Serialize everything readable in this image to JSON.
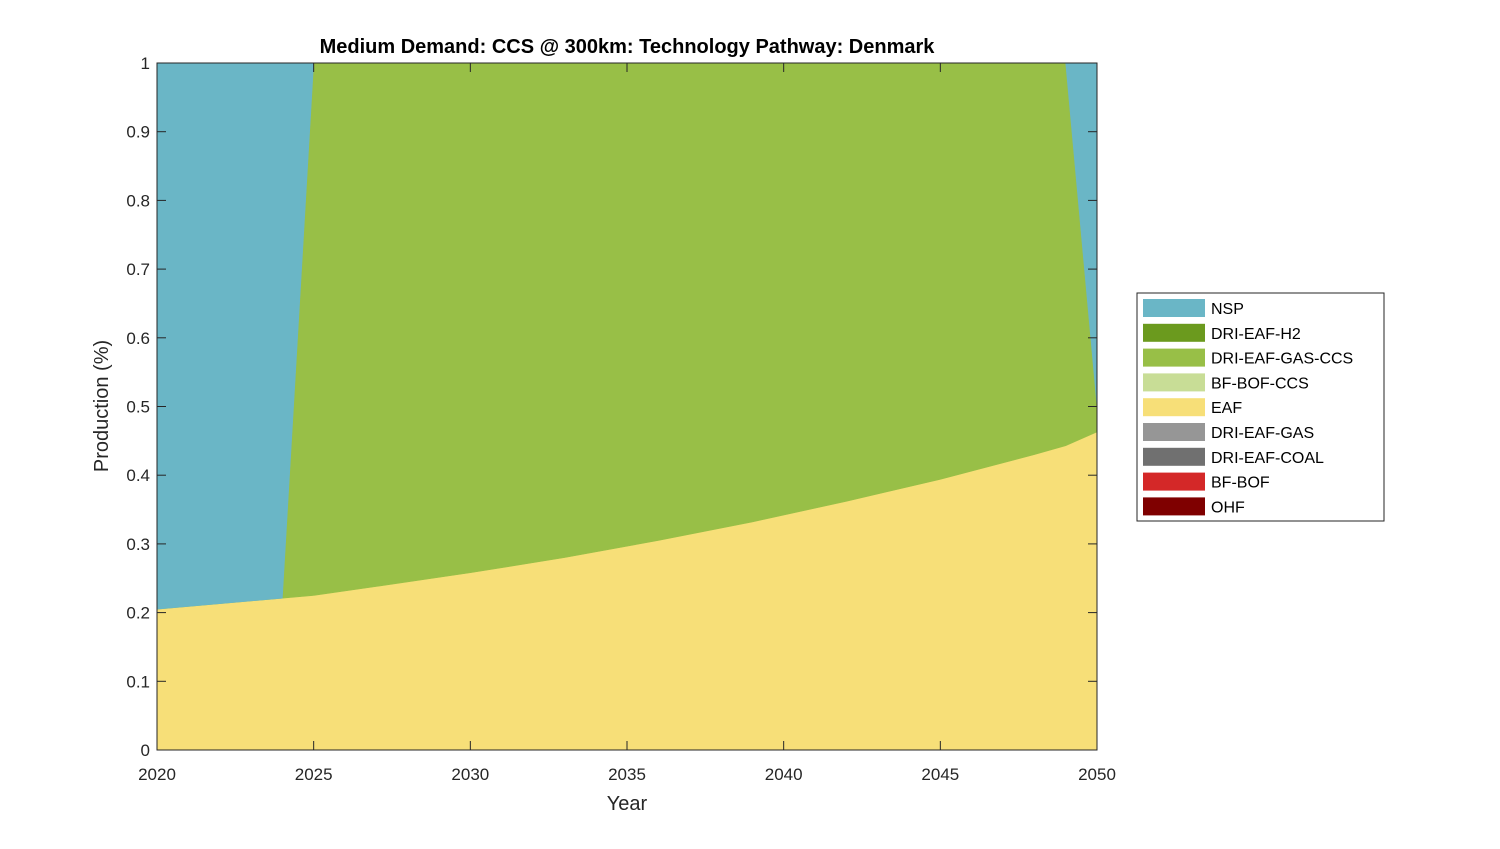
{
  "chart_data": {
    "type": "area",
    "title": "Medium Demand: CCS @ 300km: Technology Pathway: Denmark",
    "xlabel": "Year",
    "ylabel": "Production (%)",
    "xlim": [
      2020,
      2050
    ],
    "ylim": [
      0,
      1
    ],
    "xticks": [
      "2020",
      "2025",
      "2030",
      "2035",
      "2040",
      "2045",
      "2050"
    ],
    "yticks": [
      "0",
      "0.1",
      "0.2",
      "0.3",
      "0.4",
      "0.5",
      "0.6",
      "0.7",
      "0.8",
      "0.9",
      "1"
    ],
    "grid": false,
    "legend_position": "right",
    "x": [
      2020,
      2024,
      2025,
      2027,
      2030,
      2033,
      2036,
      2039,
      2042,
      2045,
      2048,
      2049,
      2050
    ],
    "series": [
      {
        "name": "EAF",
        "color": "#F7DF78",
        "values": [
          0.205,
          0.221,
          0.225,
          0.238,
          0.258,
          0.28,
          0.305,
          0.332,
          0.362,
          0.394,
          0.43,
          0.443,
          0.463
        ]
      },
      {
        "name": "BF-BOF-CCS",
        "color": "#C8DD96",
        "values": [
          0,
          0,
          0,
          0,
          0,
          0,
          0,
          0,
          0,
          0,
          0,
          0,
          0
        ]
      },
      {
        "name": "DRI-EAF-GAS-CCS",
        "color": "#98BF47",
        "values": [
          0,
          0,
          0.775,
          0.762,
          0.742,
          0.72,
          0.695,
          0.668,
          0.638,
          0.606,
          0.57,
          0.557,
          0.037
        ]
      },
      {
        "name": "DRI-EAF-H2",
        "color": "#6B9A1E",
        "values": [
          0,
          0,
          0,
          0,
          0,
          0,
          0,
          0,
          0,
          0,
          0,
          0,
          0
        ]
      },
      {
        "name": "NSP",
        "color": "#6AB6C6",
        "values": [
          0.795,
          0.779,
          0,
          0,
          0,
          0,
          0,
          0,
          0,
          0,
          0,
          0,
          0.5
        ]
      }
    ],
    "legend": [
      {
        "name": "NSP",
        "color": "#6AB6C6"
      },
      {
        "name": "DRI-EAF-H2",
        "color": "#6B9A1E"
      },
      {
        "name": "DRI-EAF-GAS-CCS",
        "color": "#98BF47"
      },
      {
        "name": "BF-BOF-CCS",
        "color": "#C8DD96"
      },
      {
        "name": "EAF",
        "color": "#F7DF78"
      },
      {
        "name": "DRI-EAF-GAS",
        "color": "#969696"
      },
      {
        "name": "DRI-EAF-COAL",
        "color": "#707070"
      },
      {
        "name": "BF-BOF",
        "color": "#D42828"
      },
      {
        "name": "OHF",
        "color": "#7F0000"
      }
    ]
  }
}
